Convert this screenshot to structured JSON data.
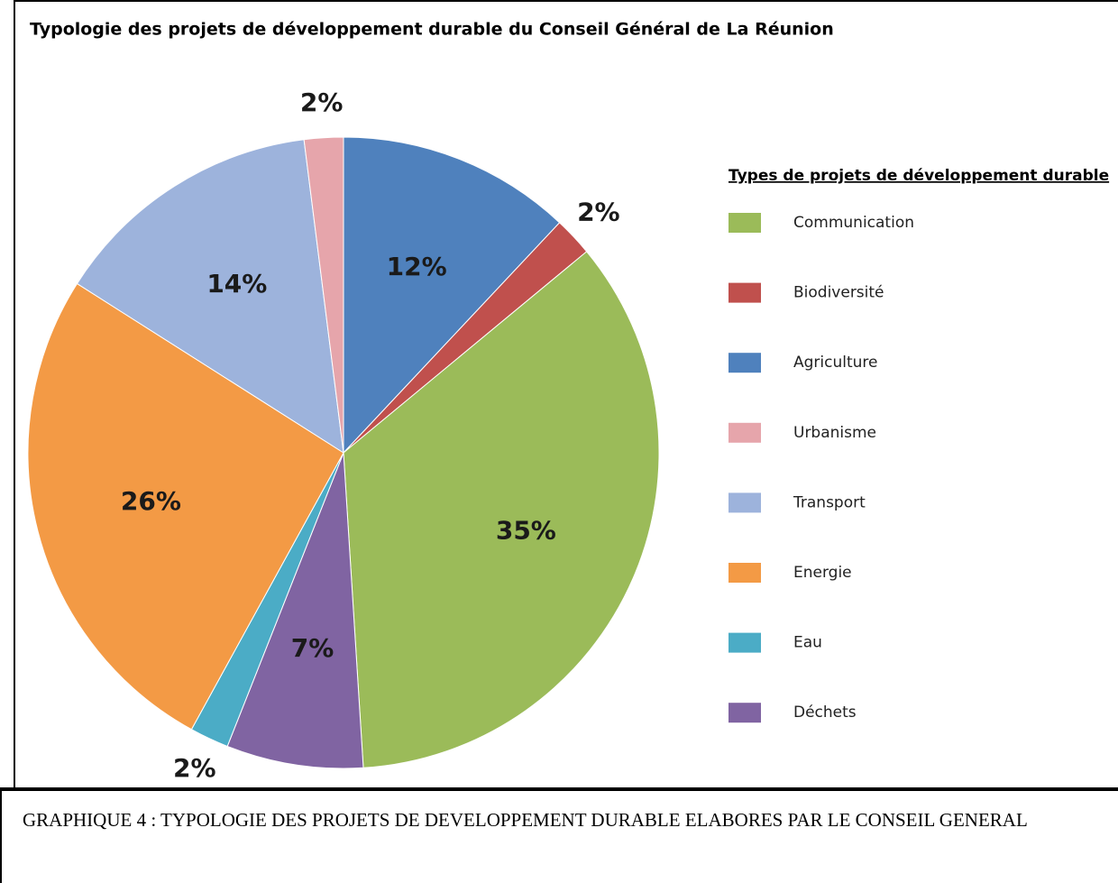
{
  "chart_data": {
    "type": "pie",
    "title": "Typologie des projets de développement durable du Conseil Général de La Réunion",
    "legend_title": "Types de projets de développement durable",
    "categories": [
      "Communication",
      "Biodiversité",
      "Agriculture",
      "Urbanisme",
      "Transport",
      "Energie",
      "Eau",
      "Déchets"
    ],
    "values": [
      35,
      2,
      12,
      2,
      14,
      26,
      2,
      7
    ],
    "value_labels": [
      "35%",
      "2%",
      "12%",
      "2%",
      "14%",
      "26%",
      "2%",
      "7%"
    ],
    "colors": [
      "#9bbb59",
      "#c0504d",
      "#4f81bd",
      "#e6a5ab",
      "#9db3dc",
      "#f39a45",
      "#4bacc6",
      "#8064a2"
    ],
    "legend": "right"
  },
  "caption": "GRAPHIQUE 4 : TYPOLOGIE DES PROJETS DE DEVELOPPEMENT DURABLE ELABORES PAR LE CONSEIL GENERAL"
}
